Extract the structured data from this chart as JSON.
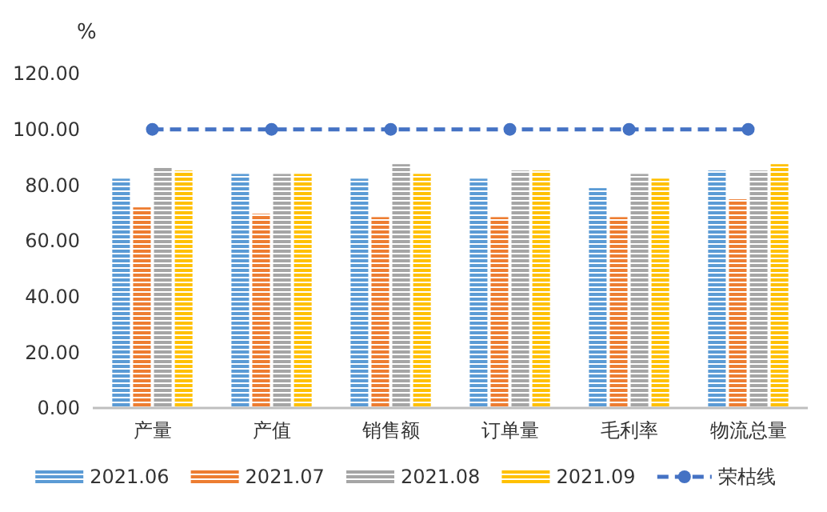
{
  "chart_data": {
    "type": "bar",
    "ylabel": "%",
    "categories": [
      "产量",
      "产值",
      "销售额",
      "订单量",
      "毛利率",
      "物流总量"
    ],
    "series": [
      {
        "name": "2021.06",
        "color": "#5b9bd5",
        "values": [
          82.3,
          84,
          82.3,
          82.3,
          78.9,
          85.2
        ]
      },
      {
        "name": "2021.07",
        "color": "#ed7d31",
        "values": [
          72,
          69.7,
          68.5,
          68.5,
          68.5,
          74.9
        ]
      },
      {
        "name": "2021.08",
        "color": "#a5a5a5",
        "values": [
          86.4,
          84,
          87.5,
          85.2,
          84,
          85.2
        ]
      },
      {
        "name": "2021.09",
        "color": "#ffc000",
        "values": [
          85.2,
          84,
          84,
          85.2,
          82.3,
          87.5
        ]
      },
      {
        "name": "荣枯线",
        "type": "line",
        "color": "#4472c4",
        "values": [
          100,
          100,
          100,
          100,
          100,
          100
        ],
        "marker": "circle",
        "line_style": "dashed"
      }
    ],
    "ylim": [
      0,
      120
    ],
    "yticks": [
      {
        "value": 0,
        "label": "0.00"
      },
      {
        "value": 20,
        "label": "20.00"
      },
      {
        "value": 40,
        "label": "40.00"
      },
      {
        "value": 60,
        "label": "60.00"
      },
      {
        "value": 80,
        "label": "80.00"
      },
      {
        "value": 100,
        "label": "100.00"
      },
      {
        "value": 120,
        "label": "120.00"
      }
    ],
    "grid": false,
    "legend": "bottom"
  }
}
